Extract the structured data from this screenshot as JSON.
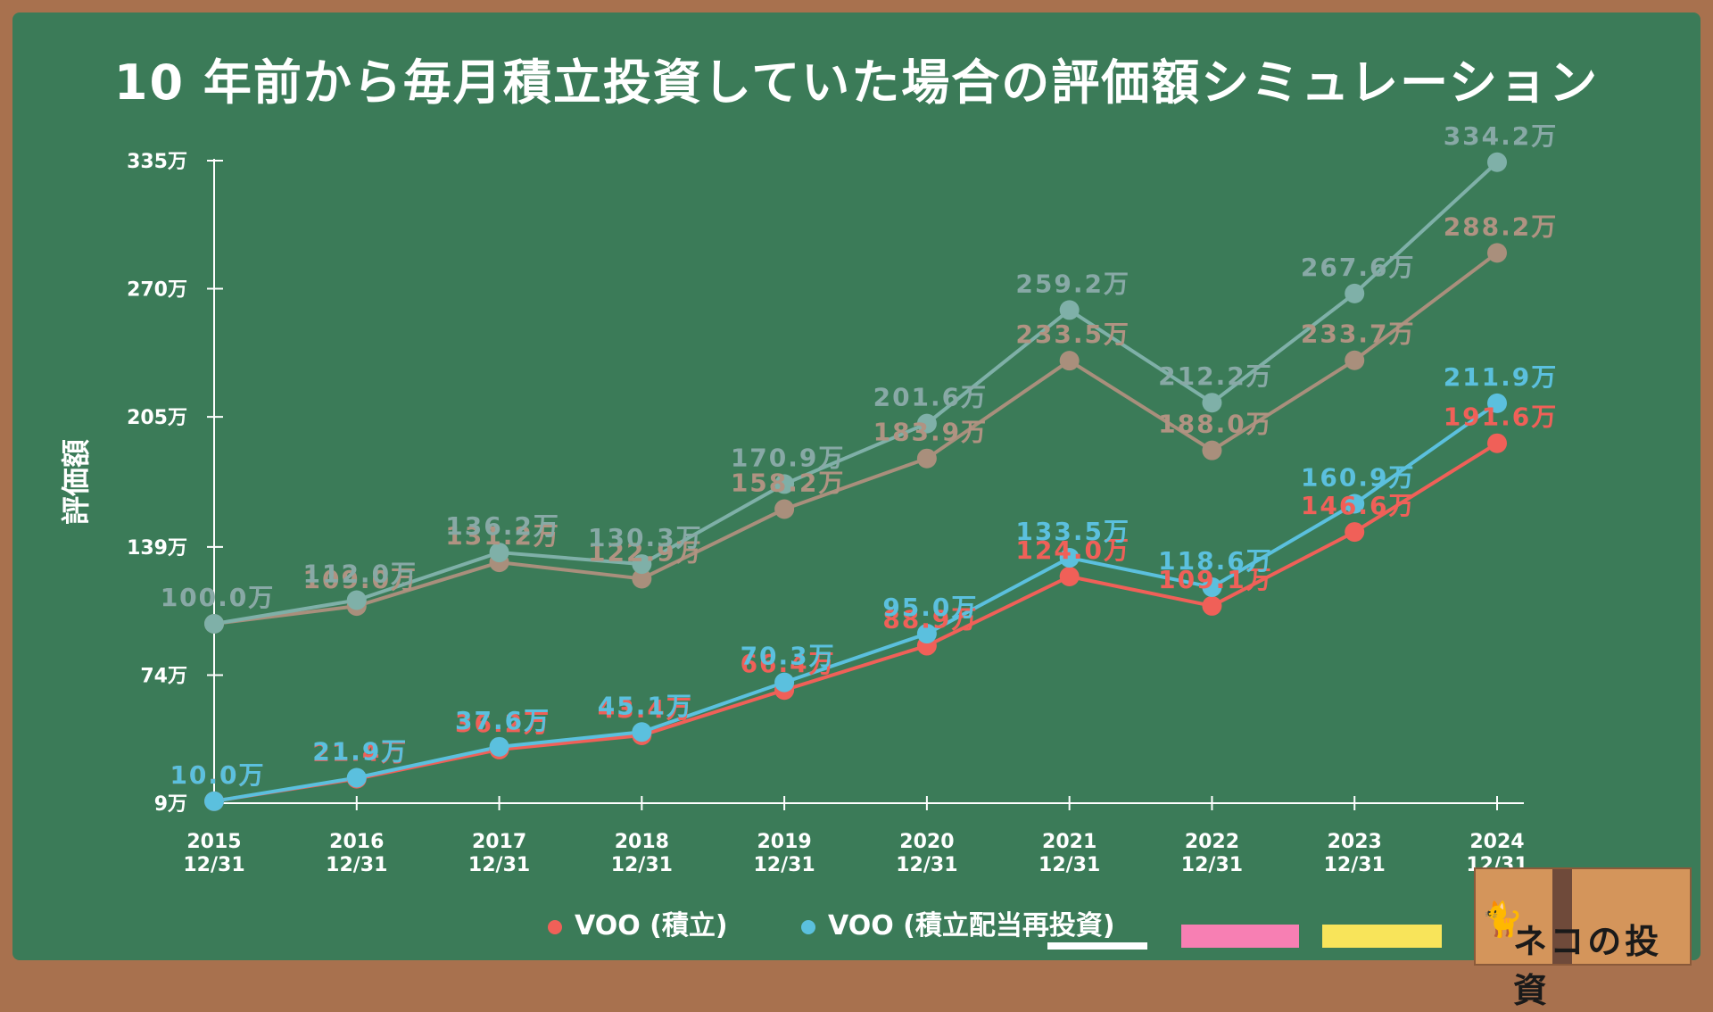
{
  "title": "10 年前から毎月積立投資していた場合の評価額シミュレーション",
  "legend": [
    {
      "label": "VOO (積立)",
      "color": "#f06058"
    },
    {
      "label": "VOO (積立配当再投資)",
      "color": "#5bc0de"
    }
  ],
  "logo_text": "ネコの投資",
  "chart_data": {
    "type": "line",
    "ylabel": "評価額",
    "yticks": [
      "9万",
      "74万",
      "139万",
      "205万",
      "270万",
      "335万"
    ],
    "ytick_values": [
      9,
      74,
      139,
      205,
      270,
      335
    ],
    "ylim": [
      9,
      335
    ],
    "categories": [
      "2015\n12/31",
      "2016\n12/31",
      "2017\n12/31",
      "2018\n12/31",
      "2019\n12/31",
      "2020\n12/31",
      "2021\n12/31",
      "2022\n12/31",
      "2023\n12/31",
      "2024\n12/31"
    ],
    "series": [
      {
        "name": "",
        "color": "#a98f7c",
        "label_color": "#b09382",
        "values": [
          100.0,
          109.0,
          131.2,
          122.9,
          158.2,
          183.9,
          233.5,
          188.0,
          233.7,
          288.2
        ],
        "labels": [
          "100.0万",
          "109.0万",
          "131.2万",
          "122.9万",
          "158.2万",
          "183.9万",
          "233.5万",
          "188.0万",
          "233.7万",
          "288.2万"
        ]
      },
      {
        "name": "",
        "color": "#7fb0a8",
        "label_color": "#88a9a6",
        "values": [
          100.0,
          112.0,
          136.2,
          130.3,
          170.9,
          201.6,
          259.2,
          212.2,
          267.6,
          334.2
        ],
        "labels": [
          "100.0万",
          "112.0万",
          "136.2万",
          "130.3万",
          "170.9万",
          "201.6万",
          "259.2万",
          "212.2万",
          "267.6万",
          "334.2万"
        ]
      },
      {
        "name": "VOO (積立)",
        "color": "#f06058",
        "label_color": "#f06058",
        "values": [
          10.0,
          21.4,
          36.2,
          43.4,
          66.4,
          88.9,
          124.0,
          109.1,
          146.6,
          191.6
        ],
        "labels": [
          "10.0万",
          "21.4万",
          "36.2万",
          "43.4万",
          "66.4万",
          "88.9万",
          "124.0万",
          "109.1万",
          "146.6万",
          "191.6万"
        ]
      },
      {
        "name": "VOO (積立配当再投資)",
        "color": "#5bc0de",
        "label_color": "#5bc0de",
        "values": [
          10.0,
          21.9,
          37.6,
          45.1,
          70.3,
          95.0,
          133.5,
          118.6,
          160.9,
          211.9
        ],
        "labels": [
          "10.0万",
          "21.9万",
          "37.6万",
          "45.1万",
          "70.3万",
          "95.0万",
          "133.5万",
          "118.6万",
          "160.9万",
          "211.9万"
        ]
      }
    ]
  }
}
